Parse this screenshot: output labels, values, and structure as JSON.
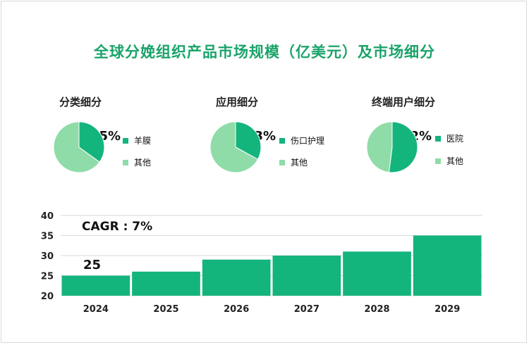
{
  "title": "全球分娩组织产品市场规模（亿美元）及市场细分",
  "pies": [
    {
      "title": "分类细分",
      "percent_label": "35%",
      "slices": [
        {
          "label": "羊膜",
          "value": 35,
          "color": "#14b47d"
        },
        {
          "label": "其他",
          "value": 65,
          "color": "#8fdca8"
        }
      ]
    },
    {
      "title": "应用细分",
      "percent_label": "33%",
      "slices": [
        {
          "label": "伤口护理",
          "value": 33,
          "color": "#14b47d"
        },
        {
          "label": "其他",
          "value": 67,
          "color": "#8fdca8"
        }
      ]
    },
    {
      "title": "终端用户细分",
      "percent_label": "52%",
      "slices": [
        {
          "label": "医院",
          "value": 52,
          "color": "#14b47d"
        },
        {
          "label": "其他",
          "value": 48,
          "color": "#8fdca8"
        }
      ]
    }
  ],
  "cagr_label": "CAGR : 7%",
  "first_bar_label": "25",
  "chart_data": {
    "type": "bar",
    "categories": [
      "2024",
      "2025",
      "2026",
      "2027",
      "2028",
      "2029"
    ],
    "values": [
      25,
      26,
      29,
      30,
      31,
      35
    ],
    "ylim": [
      20,
      40
    ],
    "yticks": [
      20,
      25,
      30,
      35,
      40
    ],
    "grid": true,
    "bar_color": "#14b47d"
  }
}
